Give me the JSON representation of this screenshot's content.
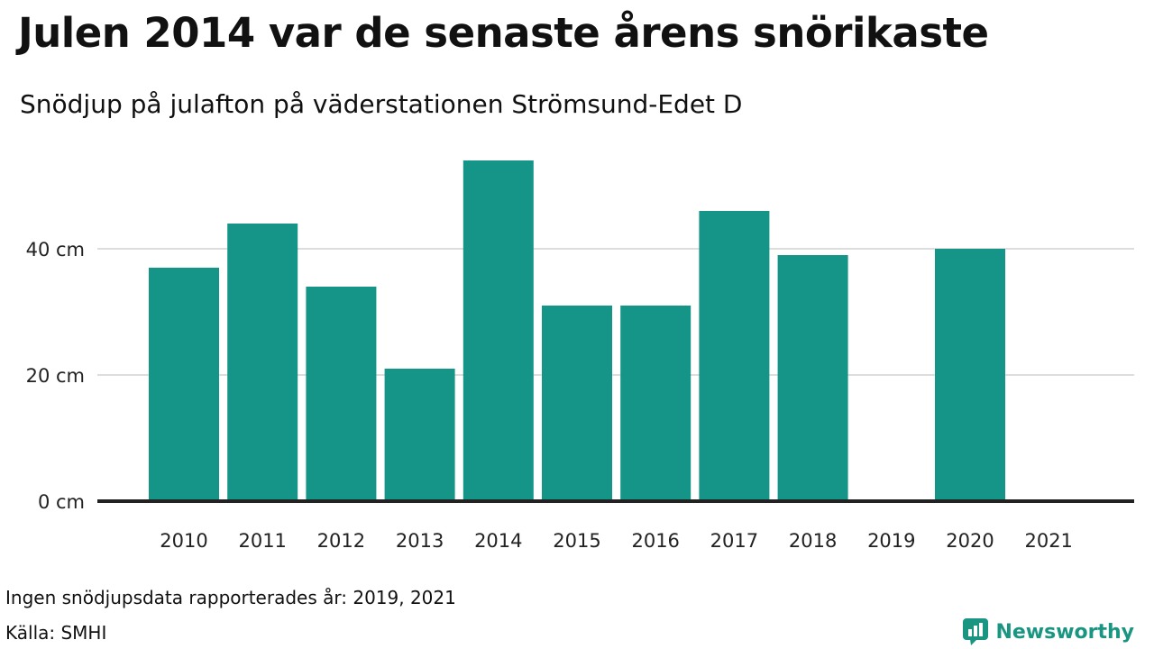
{
  "title": "Julen 2014 var de senaste årens snörikaste",
  "subtitle": "Snödjup på julafton på väderstationen Strömsund-Edet D",
  "footnote": "Ingen snödjupsdata rapporterades år: 2019, 2021",
  "source": "Källa: SMHI",
  "brand": {
    "name": "Newsworthy",
    "icon": "newsworthy-logo-icon",
    "color": "#1a9582"
  },
  "colors": {
    "bar": "#149587",
    "grid": "#dddddd",
    "baseline": "#222222"
  },
  "chart_data": {
    "type": "bar",
    "categories": [
      "2010",
      "2011",
      "2012",
      "2013",
      "2014",
      "2015",
      "2016",
      "2017",
      "2018",
      "2019",
      "2020",
      "2021"
    ],
    "values": [
      37,
      44,
      34,
      21,
      54,
      31,
      31,
      46,
      39,
      null,
      40,
      null
    ],
    "yticks": [
      0,
      20,
      40
    ],
    "ytick_labels": [
      "0 cm",
      "20 cm",
      "40 cm"
    ],
    "ylim": [
      0,
      58
    ],
    "grid": true,
    "legend": false
  }
}
